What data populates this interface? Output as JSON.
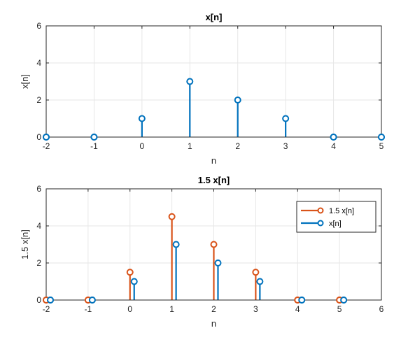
{
  "chart_data": [
    {
      "type": "stem",
      "title": "x[n]",
      "xlabel": "n",
      "ylabel": "x[n]",
      "xlim": [
        -2,
        5
      ],
      "ylim": [
        0,
        6
      ],
      "xticks": [
        "-2",
        "-1",
        "0",
        "1",
        "2",
        "3",
        "4",
        "5"
      ],
      "yticks": [
        "0",
        "2",
        "4",
        "6"
      ],
      "grid": true,
      "series": [
        {
          "x": [
            -2,
            -1,
            0,
            1,
            2,
            3,
            4,
            5
          ],
          "values": [
            0,
            0,
            1,
            3,
            2,
            1,
            0,
            0
          ],
          "color": "#0072BD"
        }
      ]
    },
    {
      "type": "stem",
      "title": "1.5 x[n]",
      "xlabel": "n",
      "ylabel": "1.5 x[n]",
      "xlim": [
        -2,
        6
      ],
      "ylim": [
        0,
        6
      ],
      "xticks": [
        "-2",
        "-1",
        "0",
        "1",
        "2",
        "3",
        "4",
        "5",
        "6"
      ],
      "yticks": [
        "0",
        "2",
        "4",
        "6"
      ],
      "grid": true,
      "legend": "top-right",
      "series": [
        {
          "name": "1.5 x[n]",
          "x": [
            -2,
            -1,
            0,
            1,
            2,
            3,
            4,
            5
          ],
          "values": [
            0,
            0,
            1.5,
            4.5,
            3,
            1.5,
            0,
            0
          ],
          "color": "#D95319"
        },
        {
          "name": "x[n]",
          "x": [
            -1.9,
            -0.9,
            0.1,
            1.1,
            2.1,
            3.1,
            4.1,
            5.1
          ],
          "values": [
            0,
            0,
            1,
            3,
            2,
            1,
            0,
            0
          ],
          "color": "#0072BD"
        }
      ]
    }
  ]
}
